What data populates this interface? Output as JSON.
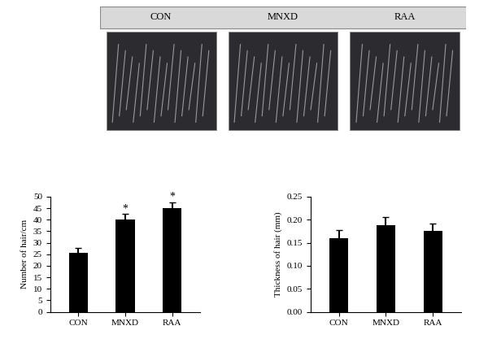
{
  "image_panels": [
    "CON",
    "MNXD",
    "RAA"
  ],
  "chart_data": [
    {
      "type": "bar",
      "categories": [
        "CON",
        "MNXD",
        "RAA"
      ],
      "values": [
        25.5,
        40,
        45
      ],
      "errors": [
        2.2,
        2.5,
        2.5
      ],
      "color": "#000000",
      "y_label": "Number of hair/cm",
      "ylim": [
        0,
        50
      ],
      "yticks": [
        0,
        5,
        10,
        15,
        20,
        25,
        30,
        35,
        40,
        45,
        50
      ],
      "annotations": [
        {
          "category": "MNXD",
          "text": "*"
        },
        {
          "category": "RAA",
          "text": "*"
        }
      ],
      "grid": false
    },
    {
      "type": "bar",
      "categories": [
        "CON",
        "MNXD",
        "RAA"
      ],
      "values": [
        0.16,
        0.188,
        0.175
      ],
      "errors": [
        0.018,
        0.017,
        0.017
      ],
      "color": "#000000",
      "y_label": "Thickness of hair (mm)",
      "ylim": [
        0,
        0.25
      ],
      "yticks": [
        {
          "value": 0,
          "label": "0.00"
        },
        {
          "value": 0.05,
          "label": "0.05"
        },
        {
          "value": 0.1,
          "label": "0.10"
        },
        {
          "value": 0.15,
          "label": "0.15"
        },
        {
          "value": 0.2,
          "label": "0.20"
        },
        {
          "value": 0.25,
          "label": "0.25"
        }
      ],
      "grid": false
    }
  ]
}
